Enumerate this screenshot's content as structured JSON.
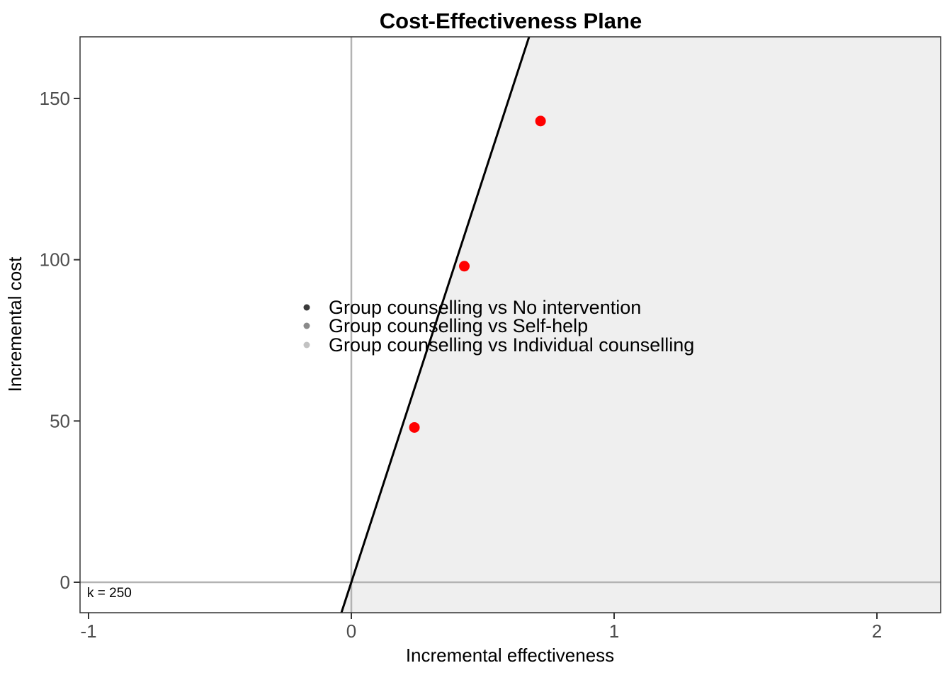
{
  "title": "Cost-Effectiveness Plane",
  "axes": {
    "x_title": "Incremental effectiveness",
    "y_title": "Incremental cost"
  },
  "k_annotation": "k = 250",
  "legend": {
    "items": [
      {
        "label": "Group counselling vs No intervention",
        "color": "#3a3a3a"
      },
      {
        "label": "Group counselling vs Self-help",
        "color": "#8a8a8a"
      },
      {
        "label": "Group counselling vs Individual counselling",
        "color": "#c2c2c2"
      }
    ]
  },
  "colors": {
    "point": "#ff0000",
    "shaded_region": "#efefef",
    "wtp_line": "#000000",
    "zero_line": "#b3b3b3",
    "panel_border": "#333333",
    "tick_mark": "#333333",
    "tick_label": "#4d4d4d",
    "text": "#000000"
  },
  "chart_data": {
    "type": "scatter",
    "title": "Cost-Effectiveness Plane",
    "xlabel": "Incremental effectiveness",
    "ylabel": "Incremental cost",
    "xlim": [
      -1.03,
      2.24
    ],
    "ylim": [
      -9.5,
      169
    ],
    "x_ticks": [
      -1,
      0,
      1,
      2
    ],
    "y_ticks": [
      0,
      50,
      100,
      150
    ],
    "grid": "off",
    "points": [
      {
        "x": 0.72,
        "y": 143
      },
      {
        "x": 0.43,
        "y": 98
      },
      {
        "x": 0.24,
        "y": 48
      }
    ],
    "point_color": "#ff0000",
    "willingness_to_pay": {
      "k": 250,
      "label": "k = 250",
      "line_through_origin": true
    },
    "reference_lines": [
      {
        "type": "hline",
        "value": 0
      },
      {
        "type": "vline",
        "value": 0
      }
    ],
    "shaded_region": "area right of / below the k=250 line (cost-effective acceptance region)",
    "legend_entries": [
      "Group counselling vs No intervention",
      "Group counselling vs Self-help",
      "Group counselling vs Individual counselling"
    ],
    "legend_position": "inside plot, center-left"
  }
}
